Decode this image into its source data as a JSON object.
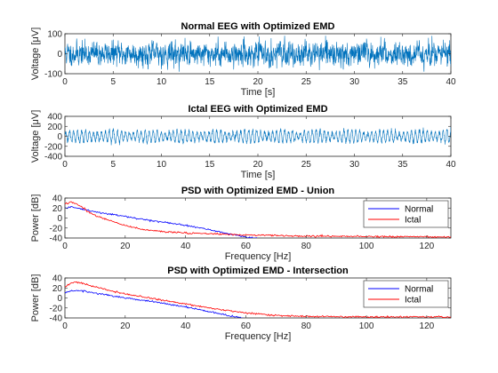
{
  "figure": {
    "background": "#ffffff"
  },
  "chart_data": [
    {
      "type": "line",
      "title": "Normal EEG with Optimized EMD",
      "xlabel": "Time [s]",
      "ylabel": "Voltage [μV]",
      "xlim": [
        0,
        40
      ],
      "ylim": [
        -100,
        100
      ],
      "xticks": [
        0,
        5,
        10,
        15,
        20,
        25,
        30,
        35,
        40
      ],
      "yticks": [
        -100,
        0,
        100
      ],
      "grid": false,
      "signal": {
        "kind": "noise",
        "n": 2000,
        "amplitude": 28,
        "peak": 90,
        "seed": 11
      },
      "series": [
        {
          "color": "#0072bd"
        }
      ]
    },
    {
      "type": "line",
      "title": "Ictal EEG with Optimized EMD",
      "xlabel": "Time [s]",
      "ylabel": "Voltage [μV]",
      "xlim": [
        0,
        40
      ],
      "ylim": [
        -400,
        400
      ],
      "xticks": [
        0,
        5,
        10,
        15,
        20,
        25,
        30,
        35,
        40
      ],
      "yticks": [
        -400,
        -200,
        0,
        200,
        400
      ],
      "grid": false,
      "signal": {
        "kind": "oscillation",
        "n": 2000,
        "amplitude": 95,
        "peak": 260,
        "seed": 29
      },
      "series": [
        {
          "color": "#0072bd"
        }
      ]
    },
    {
      "type": "line",
      "title": "PSD with Optimized EMD - Union",
      "xlabel": "Frequency [Hz]",
      "ylabel": "Power [dB]",
      "xlim": [
        0,
        128
      ],
      "ylim": [
        -40,
        40
      ],
      "xticks": [
        0,
        20,
        40,
        60,
        80,
        100,
        120
      ],
      "yticks": [
        -40,
        -20,
        0,
        20,
        40
      ],
      "grid": false,
      "legend": "top-right",
      "series": [
        {
          "name": "Normal",
          "color": "#0000ff",
          "x": [
            0,
            2,
            4,
            6,
            8,
            10,
            15,
            20,
            25,
            30,
            35,
            40,
            45,
            50,
            55,
            60,
            65
          ],
          "y": [
            20,
            22,
            20,
            17,
            15,
            12,
            8,
            3,
            -2,
            -6,
            -10,
            -15,
            -20,
            -26,
            -32,
            -38,
            -42
          ]
        },
        {
          "name": "Ictal",
          "color": "#ff0000",
          "x": [
            0,
            2,
            4,
            6,
            8,
            10,
            15,
            20,
            25,
            30,
            40,
            50,
            60,
            80,
            100,
            128
          ],
          "y": [
            28,
            32,
            28,
            20,
            12,
            5,
            -5,
            -15,
            -22,
            -26,
            -30,
            -32,
            -34,
            -36,
            -37,
            -38
          ]
        }
      ]
    },
    {
      "type": "line",
      "title": "PSD with Optimized EMD - Intersection",
      "xlabel": "Frequency [Hz]",
      "ylabel": "Power [dB]",
      "xlim": [
        0,
        128
      ],
      "ylim": [
        -40,
        40
      ],
      "xticks": [
        0,
        20,
        40,
        60,
        80,
        100,
        120
      ],
      "yticks": [
        -40,
        -20,
        0,
        20,
        40
      ],
      "grid": false,
      "legend": "top-right",
      "series": [
        {
          "name": "Normal",
          "color": "#0000ff",
          "x": [
            0,
            2,
            4,
            6,
            8,
            10,
            15,
            20,
            25,
            30,
            35,
            40,
            45,
            50,
            55,
            60
          ],
          "y": [
            10,
            14,
            15,
            14,
            12,
            10,
            5,
            0,
            -4,
            -8,
            -13,
            -18,
            -24,
            -30,
            -36,
            -42
          ]
        },
        {
          "name": "Ictal",
          "color": "#ff0000",
          "x": [
            0,
            2,
            4,
            6,
            8,
            10,
            15,
            20,
            25,
            30,
            40,
            50,
            60,
            70,
            80,
            100,
            128
          ],
          "y": [
            22,
            30,
            32,
            29,
            25,
            22,
            15,
            8,
            3,
            -2,
            -12,
            -22,
            -30,
            -35,
            -37,
            -38,
            -38
          ]
        }
      ]
    }
  ]
}
